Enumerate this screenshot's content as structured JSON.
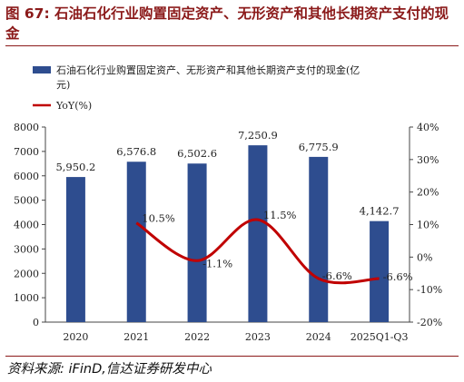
{
  "figure": {
    "title": "图 67: 石油石化行业购置固定资产、无形资产和其他长期资产支付的现金",
    "source_label": "资料来源:",
    "source_name": " iFinD,信达证券研发中心"
  },
  "chart_data": {
    "type": "bar",
    "categories": [
      "2020",
      "2021",
      "2022",
      "2023",
      "2024",
      "2025Q1-Q3"
    ],
    "series": [
      {
        "name": "石油石化行业购置固定资产、无形资产和其他长期资产支付的现金(亿元)",
        "type": "bar",
        "axis": "left",
        "color": "#2e4d8f",
        "values": [
          5950.2,
          6576.8,
          6502.6,
          7250.9,
          6775.9,
          4142.7
        ],
        "labels": [
          "5,950.2",
          "6,576.8",
          "6,502.6",
          "7,250.9",
          "6,775.9",
          "4,142.7"
        ]
      },
      {
        "name": "YoY(%)",
        "type": "line",
        "axis": "right",
        "color": "#c00000",
        "values": [
          null,
          10.5,
          -1.1,
          11.5,
          -6.6,
          -6.6
        ],
        "labels": [
          "",
          "10.5%",
          "-1.1%",
          "11.5%",
          "-6.6%",
          "-6.6%"
        ]
      }
    ],
    "ylim_left": [
      0,
      8000
    ],
    "yticks_left": [
      "0",
      "1000",
      "2000",
      "3000",
      "4000",
      "5000",
      "6000",
      "7000",
      "8000"
    ],
    "ylim_right": [
      -20,
      40
    ],
    "yticks_right": [
      "-20%",
      "-10%",
      "0%",
      "10%",
      "20%",
      "30%",
      "40%"
    ],
    "legend_position": "top-left",
    "grid": false
  }
}
